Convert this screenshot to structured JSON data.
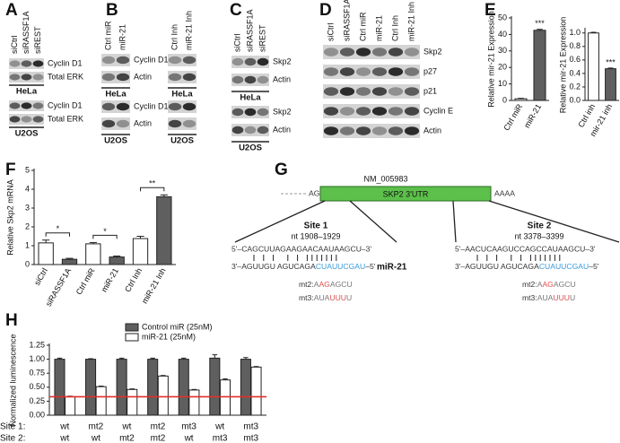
{
  "panel_labels": [
    "A",
    "B",
    "C",
    "D",
    "E",
    "F",
    "G",
    "H"
  ],
  "blots": {
    "A": {
      "lane_sets": [
        [
          "siCtrl",
          "siRASSF1A",
          "siREST"
        ]
      ],
      "groups": [
        {
          "rows": [
            "Cyclin D1",
            "Total ERK"
          ],
          "cells": [
            "HeLa"
          ]
        },
        {
          "rows": [
            "Cyclin D1",
            "Total ERK"
          ],
          "cells": [
            "U2OS"
          ]
        }
      ]
    },
    "B": {
      "lane_sets": [
        [
          "Ctrl miR",
          "miR-21"
        ],
        [
          "Ctrl Inh",
          "miR-21 Inh"
        ]
      ],
      "groups": [
        {
          "rows": [
            "Cyclin D1",
            "Actin"
          ],
          "cells": [
            "HeLa",
            "HeLa"
          ]
        },
        {
          "rows": [
            "Cyclin D1",
            "Actin"
          ],
          "cells": [
            "U2OS",
            "U2OS"
          ]
        }
      ]
    },
    "C": {
      "lane_sets": [
        [
          "siCtrl",
          "siRASSF1A",
          "siREST"
        ]
      ],
      "groups": [
        {
          "rows": [
            "Skp2",
            "Actin"
          ],
          "cells": [
            "HeLa"
          ]
        },
        {
          "rows": [
            "Skp2",
            "Actin"
          ],
          "cells": [
            "U2OS"
          ]
        }
      ]
    },
    "D": {
      "lane_sets": [
        [
          "siCtrl",
          "siRASSF1A",
          "Ctrl miR",
          "miR-21",
          "Ctrl Inh",
          "miR-21 Inh"
        ]
      ],
      "groups": [
        {
          "rows": [
            "Skp2",
            "p27",
            "p21",
            "Cyclin E",
            "Actin"
          ]
        }
      ]
    }
  },
  "diagram": {
    "gene": "NM_005983",
    "utr": "SKP2 3'UTR",
    "upstream": "AG",
    "poly_a": "AAAA",
    "mirna": "miR-21",
    "sites": [
      {
        "name": "Site 1",
        "nt": "nt 1908–1929",
        "target": "5'–CAGCUUAGAAGAACAAUAAGCU–3'",
        "mir": [
          "3'–AGUUGU AGUCAGA",
          "CUAUUCGAU",
          "–5'"
        ],
        "mt2": [
          "mt2:",
          "A",
          "AG",
          "AGCU"
        ],
        "mt3": [
          "mt3:",
          "AUA",
          "UUU",
          "U"
        ]
      },
      {
        "name": "Site 2",
        "nt": "nt 3378–3399",
        "target": "5'–AACUCAAGUCCAGCCAUAAGCU–3'",
        "mir": [
          "3'–AGUUGU AGUCAGA",
          "CUAUUCGAU",
          "–5'"
        ],
        "mt2": [
          "mt2:",
          "A",
          "AG",
          "AGCU"
        ],
        "mt3": [
          "mt3:",
          "AUA",
          "UUU",
          "U"
        ]
      }
    ]
  },
  "chart_data": [
    {
      "type": "bar",
      "y_label": "Relative mir-21 Expression",
      "categories": [
        "Ctrl miR",
        "miR-21"
      ],
      "values": [
        1,
        42.5
      ],
      "errors": [
        0.3,
        0.6
      ],
      "colors": [
        "#ffffff",
        "#5f5f5f"
      ],
      "ylim": [
        0,
        50
      ],
      "yticks": [
        0,
        10,
        20,
        30,
        40,
        50
      ],
      "annotations": [
        "***"
      ]
    },
    {
      "type": "bar",
      "y_label": "Relative mir-21 Expression",
      "categories": [
        "Ctrl inh",
        "mir-21 inh"
      ],
      "values": [
        1.0,
        0.47
      ],
      "errors": [
        0.01,
        0.01
      ],
      "colors": [
        "#ffffff",
        "#5f5f5f"
      ],
      "ylim": [
        0,
        1.05
      ],
      "yticks": [
        {
          "value": 0,
          "label": "0.0"
        },
        {
          "value": 0.2,
          "label": "0.2"
        },
        {
          "value": 0.4,
          "label": "0.4"
        },
        {
          "value": 0.6,
          "label": "0.6"
        },
        {
          "value": 0.8,
          "label": "0.8"
        },
        {
          "value": 1,
          "label": "1.0"
        }
      ],
      "annotations": [
        "***"
      ]
    },
    {
      "type": "bar",
      "y_label": "Relative Skp2 mRNA",
      "categories": [
        "siCtrl",
        "siRASSF1A",
        "Ctrl miR",
        "miR-21",
        "Ctrl Inh",
        "miR-21 Inh"
      ],
      "values": [
        1.15,
        0.28,
        1.1,
        0.4,
        1.38,
        3.6
      ],
      "errors": [
        0.15,
        0.05,
        0.07,
        0.05,
        0.12,
        0.1
      ],
      "colors": [
        "#ffffff",
        "#5f5f5f",
        "#ffffff",
        "#5f5f5f",
        "#ffffff",
        "#5f5f5f"
      ],
      "ylim": [
        0,
        5
      ],
      "yticks": [
        0,
        1,
        2,
        3,
        4,
        5
      ],
      "annotations": [
        "*",
        "*",
        "**"
      ]
    },
    {
      "type": "grouped_bar",
      "y_label": "Normalized luminescence",
      "x_label_rows": [
        {
          "name": "Site 1:",
          "labels": [
            "wt",
            "mt2",
            "wt",
            "mt2",
            "mt3",
            "wt",
            "mt3"
          ]
        },
        {
          "name": "Site 2:",
          "labels": [
            "wt",
            "wt",
            "mt2",
            "mt2",
            "wt",
            "mt3",
            "mt3"
          ]
        }
      ],
      "series": [
        {
          "name": "Control miR (25nM)",
          "color": "#5f5f5f",
          "values": [
            1.0,
            1.0,
            1.0,
            1.0,
            1.0,
            1.02,
            1.0
          ],
          "errors": [
            0.02,
            0.01,
            0.02,
            0.02,
            0.02,
            0.06,
            0.03
          ]
        },
        {
          "name": "miR-21 (25nM)",
          "color": "#ffffff",
          "values": [
            0.33,
            0.51,
            0.46,
            0.7,
            0.45,
            0.63,
            0.86
          ],
          "errors": [
            0.01,
            0.01,
            0.01,
            0.01,
            0.01,
            0.02,
            0.01
          ]
        }
      ],
      "reference_line": {
        "value": 0.33,
        "color": "#e0302a"
      },
      "ylim": [
        0,
        1.25
      ],
      "yticks": [
        {
          "value": 0,
          "label": "0.00"
        },
        {
          "value": 0.25,
          "label": "0.25"
        },
        {
          "value": 0.5,
          "label": "0.50"
        },
        {
          "value": 0.75,
          "label": "0.75"
        },
        {
          "value": 1,
          "label": "1.00"
        },
        {
          "value": 1.25,
          "label": "1.25"
        }
      ]
    }
  ]
}
